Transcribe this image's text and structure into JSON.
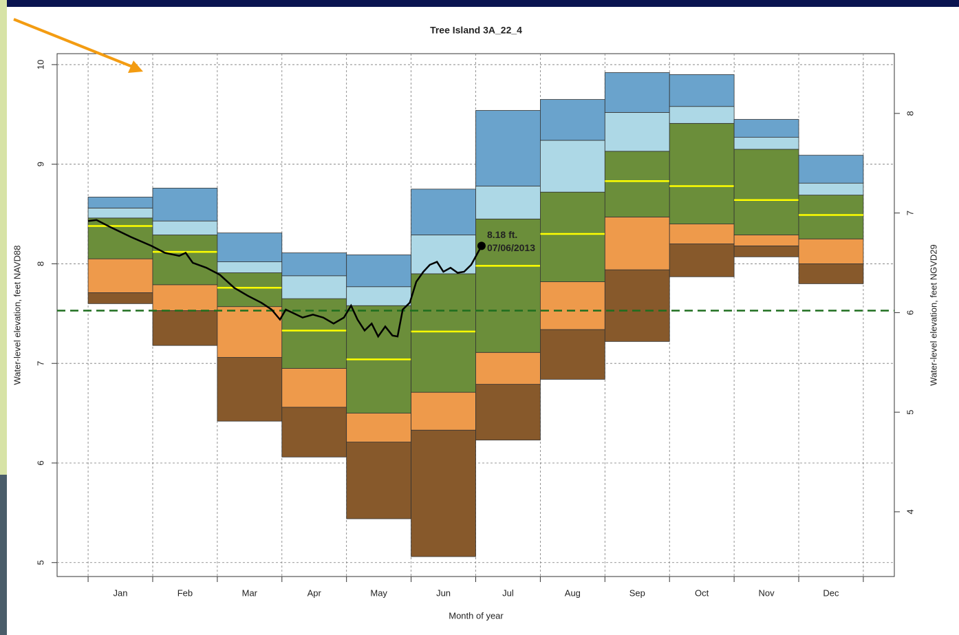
{
  "chart_data": {
    "type": "band",
    "title": "Tree Island 3A_22_4",
    "xlabel": "Month of year",
    "ylabel": "Water-level elevation, feet NAVD88",
    "y2label": "Water-level elevation, feet NGVD29",
    "categories": [
      "Jan",
      "Feb",
      "Mar",
      "Apr",
      "May",
      "Jun",
      "Jul",
      "Aug",
      "Sep",
      "Oct",
      "Nov",
      "Dec"
    ],
    "xlim": [
      -0.48,
      12.48
    ],
    "ylim": [
      4.86,
      10.11
    ],
    "yticks": [
      5,
      6,
      7,
      8,
      9,
      10
    ],
    "y2lim": [
      3.35,
      8.6
    ],
    "y2ticks": [
      4,
      5,
      6,
      7,
      8
    ],
    "grid": true,
    "series": [
      {
        "color": "#87592b",
        "values": [
          7.6,
          7.18,
          6.42,
          6.06,
          5.44,
          5.06,
          6.23,
          6.84,
          7.22,
          7.87,
          8.07,
          7.8
        ]
      },
      {
        "color": "#ee9a4b",
        "values": [
          7.71,
          7.53,
          7.06,
          6.56,
          6.21,
          6.33,
          6.79,
          7.34,
          7.94,
          8.2,
          8.18,
          8.0
        ]
      },
      {
        "color": "#6b8e3a",
        "values": [
          8.05,
          7.79,
          7.57,
          6.95,
          6.5,
          6.71,
          7.11,
          7.82,
          8.47,
          8.4,
          8.29,
          8.25
        ]
      },
      {
        "color": "#ffff00",
        "median": true,
        "values": [
          8.38,
          8.12,
          7.76,
          7.33,
          7.04,
          7.32,
          7.98,
          8.3,
          8.83,
          8.78,
          8.64,
          8.49
        ]
      },
      {
        "color": "#add8e6",
        "values": [
          8.46,
          8.29,
          7.91,
          7.65,
          7.58,
          7.9,
          8.45,
          8.72,
          9.13,
          9.41,
          9.15,
          8.69
        ]
      },
      {
        "color": "#6aa3cc",
        "values": [
          8.56,
          8.43,
          8.02,
          7.88,
          7.77,
          8.29,
          8.78,
          9.24,
          9.52,
          9.58,
          9.27,
          8.81
        ]
      },
      {
        "values": [
          8.67,
          8.76,
          8.31,
          8.11,
          8.09,
          8.75,
          9.54,
          9.65,
          9.92,
          9.9,
          9.45,
          9.09
        ]
      }
    ],
    "line": {
      "color": "#000000",
      "x": [
        0,
        0.13,
        0.34,
        0.66,
        0.98,
        1.19,
        1.41,
        1.51,
        1.62,
        1.83,
        2.04,
        2.26,
        2.47,
        2.68,
        2.84,
        2.97,
        3.06,
        3.16,
        3.32,
        3.48,
        3.64,
        3.8,
        3.96,
        4.07,
        4.17,
        4.28,
        4.39,
        4.49,
        4.6,
        4.71,
        4.79,
        4.87,
        4.98,
        5.08,
        5.19,
        5.29,
        5.4,
        5.5,
        5.61,
        5.72,
        5.82,
        5.93,
        6.09
      ],
      "values": [
        8.43,
        8.44,
        8.37,
        8.27,
        8.18,
        8.11,
        8.08,
        8.11,
        8.01,
        7.96,
        7.89,
        7.76,
        7.68,
        7.61,
        7.54,
        7.44,
        7.54,
        7.51,
        7.46,
        7.49,
        7.46,
        7.4,
        7.46,
        7.58,
        7.44,
        7.33,
        7.4,
        7.27,
        7.37,
        7.28,
        7.27,
        7.54,
        7.61,
        7.82,
        7.92,
        7.99,
        8.02,
        7.92,
        7.96,
        7.91,
        7.92,
        7.99,
        8.18
      ]
    },
    "annotation": {
      "x": 6.09,
      "y": 8.18,
      "label": "8.18 ft.",
      "date": "07/06/2013"
    },
    "reference": {
      "value": 7.53,
      "color": "#1e6e1e"
    }
  }
}
